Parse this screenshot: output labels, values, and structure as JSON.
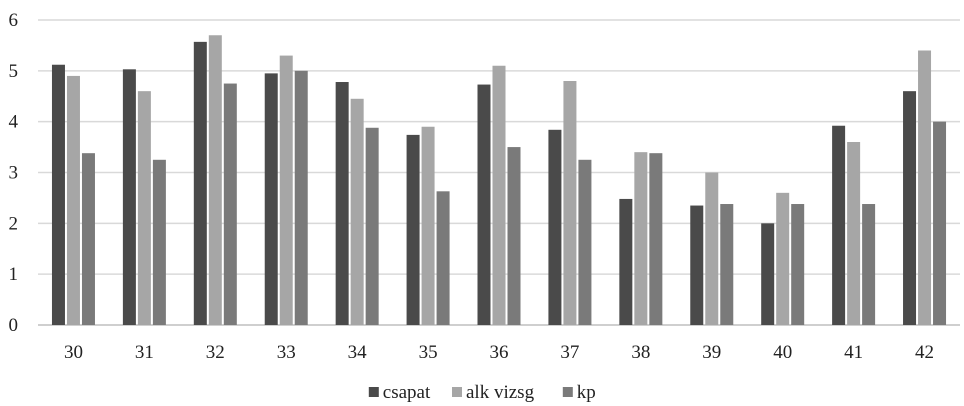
{
  "chart_data": {
    "type": "bar",
    "categories": [
      "30",
      "31",
      "32",
      "33",
      "34",
      "35",
      "36",
      "37",
      "38",
      "39",
      "40",
      "41",
      "42"
    ],
    "series": [
      {
        "name": "csapat",
        "color": "#4a4a4a",
        "values": [
          5.12,
          5.03,
          5.57,
          4.95,
          4.78,
          3.74,
          4.73,
          3.84,
          2.48,
          2.35,
          2.0,
          3.92,
          4.6
        ]
      },
      {
        "name": "alk vizsg",
        "color": "#a6a6a6",
        "values": [
          4.9,
          4.6,
          5.7,
          5.3,
          4.45,
          3.9,
          5.1,
          4.8,
          3.4,
          3.0,
          2.6,
          3.6,
          5.4
        ]
      },
      {
        "name": "kp",
        "color": "#7a7a7a",
        "values": [
          3.38,
          3.25,
          4.75,
          5.0,
          3.88,
          2.63,
          3.5,
          3.25,
          3.38,
          2.38,
          2.38,
          2.38,
          4.0
        ]
      }
    ],
    "yticks": [
      "0",
      "1",
      "2",
      "3",
      "4",
      "5",
      "6"
    ],
    "ylim": [
      0,
      6
    ],
    "grid": "horizontal",
    "legend_position": "bottom-center"
  }
}
